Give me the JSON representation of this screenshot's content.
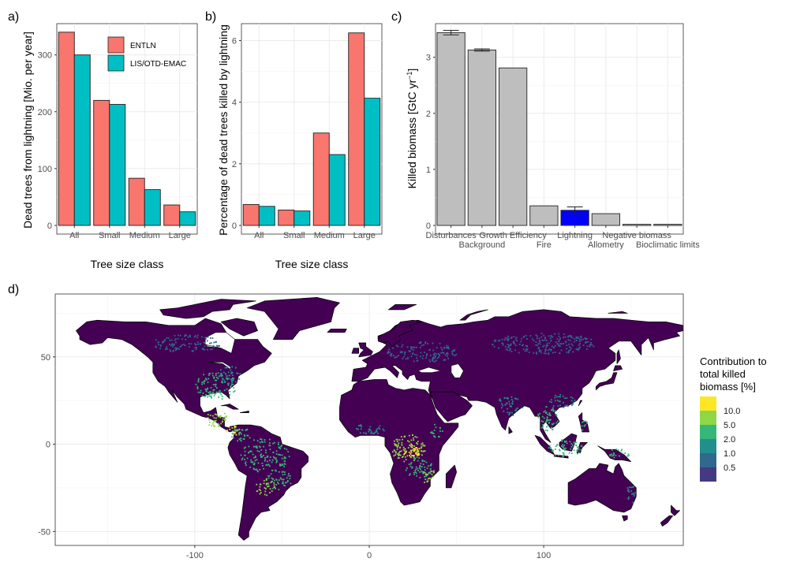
{
  "panel_labels": {
    "a": "a)",
    "b": "b)",
    "c": "c)",
    "d": "d)"
  },
  "colors": {
    "entln": "#f8766d",
    "lis": "#00bfc4",
    "grey_bar": "#bebebe",
    "lightning": "#0000ff",
    "ocean": "#ffffff",
    "land_base": "#440154"
  },
  "chart_data": [
    {
      "id": "a",
      "type": "bar",
      "categories": [
        "All",
        "Small",
        "Medium",
        "Large"
      ],
      "series": [
        {
          "name": "ENTLN",
          "values": [
            340,
            220,
            83,
            36
          ]
        },
        {
          "name": "LIS/OTD-EMAC",
          "values": [
            300,
            213,
            63,
            24
          ]
        }
      ],
      "xlabel": "Tree size class",
      "ylabel": "Dead trees from lightning [Mio. per year]",
      "ylim": [
        0,
        355
      ],
      "yticks": [
        0,
        100,
        200,
        300
      ],
      "legend_placement": "top-right",
      "grid": true
    },
    {
      "id": "b",
      "type": "bar",
      "categories": [
        "All",
        "Small",
        "Medium",
        "Large"
      ],
      "series": [
        {
          "name": "ENTLN",
          "values": [
            0.68,
            0.5,
            3.0,
            6.25
          ]
        },
        {
          "name": "LIS/OTD-EMAC",
          "values": [
            0.62,
            0.47,
            2.3,
            4.13
          ]
        }
      ],
      "xlabel": "Tree size class",
      "ylabel": "Percentage of dead trees killed by lightning",
      "ylim": [
        0,
        6.55
      ],
      "yticks": [
        0,
        2,
        4,
        6
      ],
      "grid": true
    },
    {
      "id": "c",
      "type": "bar",
      "categories": [
        "Disturbances",
        "Background",
        "Growth Efficiency",
        "Fire",
        "Lightning",
        "Allometry",
        "Negative biomass",
        "Bioclimatic limits"
      ],
      "values": [
        3.44,
        3.13,
        2.81,
        0.35,
        0.27,
        0.21,
        0.02,
        0.02
      ],
      "error": [
        0.04,
        0.02,
        null,
        null,
        0.06,
        null,
        null,
        null
      ],
      "highlight": "Lightning",
      "ylabel": "Killed biomass [GtC yr",
      "ylabel_sup": "−1",
      "ylabel_close": "]",
      "ylim": [
        0,
        3.6
      ],
      "yticks": [
        0,
        1,
        2,
        3
      ],
      "grid": true
    },
    {
      "id": "d",
      "type": "heatmap",
      "xticks": [
        -100,
        0,
        100
      ],
      "yticks": [
        -50,
        0,
        50
      ],
      "xlim": [
        -180,
        180
      ],
      "ylim": [
        -58,
        86
      ],
      "legend_title": [
        "Contribution to",
        "total killed",
        "biomass [%]"
      ],
      "legend": [
        {
          "label": "10.0",
          "color": "#fde725"
        },
        {
          "label": "5.0",
          "color": "#8fd744"
        },
        {
          "label": "2.0",
          "color": "#35b779"
        },
        {
          "label": "1.0",
          "color": "#21908d"
        },
        {
          "label": "0.5",
          "color": "#31688e"
        },
        {
          "label": "",
          "color": "#443a83"
        }
      ]
    }
  ]
}
